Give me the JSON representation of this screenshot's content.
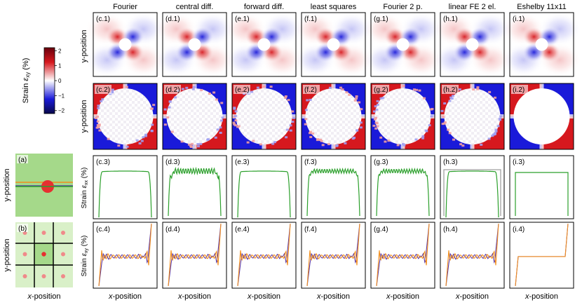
{
  "columns": [
    "Fourier",
    "central diff.",
    "forward diff.",
    "least squares",
    "Fourier 2 p.",
    "linear FE 2 el.",
    "Eshelby 11x11"
  ],
  "panels": {
    "row1": [
      "(c.1)",
      "(d.1)",
      "(e.1)",
      "(f.1)",
      "(g.1)",
      "(h.1)",
      "(i.1)"
    ],
    "row2": [
      "(c.2)",
      "(d.2)",
      "(e.2)",
      "(f.2)",
      "(g.2)",
      "(h.2)",
      "(i.2)"
    ],
    "row3": [
      "(c.3)",
      "(d.3)",
      "(e.3)",
      "(f.3)",
      "(g.3)",
      "(h.3)",
      "(i.3)"
    ],
    "row4": [
      "(c.4)",
      "(d.4)",
      "(e.4)",
      "(f.4)",
      "(g.4)",
      "(h.4)",
      "(i.4)"
    ],
    "a": "(a)",
    "b": "(b)"
  },
  "row_labels": {
    "y_position": "y-position",
    "strain_xx_prefix": "Strain ",
    "strain_xx_symbol": "ε",
    "strain_xx_sub": "xx",
    "strain_xy_sub": "xy",
    "unit": " (%)"
  },
  "x_label": "x-position",
  "colorbar": {
    "label_prefix": "Strain ",
    "symbol": "ε",
    "sub": "xy",
    "unit": " (%)",
    "ticks": [
      "2",
      "1",
      "0",
      "−1",
      "−2"
    ],
    "tick_values": [
      2,
      1,
      0,
      -1,
      -2
    ],
    "range": [
      -2.2,
      2.2
    ]
  },
  "colors": {
    "positive": "#d6181e",
    "negative": "#1a1ad9",
    "neutral": "#ffffff",
    "green_line": "#2ca02c",
    "purple_line": "#5b3aa8",
    "orange_line": "#f28e1c",
    "gray_line": "#a0a0a0",
    "unit_cell_green": "#a5d98a",
    "unit_cell_light": "#d9f0c8",
    "inclusion": "#e63030"
  },
  "chart_data": {
    "type": "heatmap-and-line-grid",
    "rows": [
      {
        "row": 1,
        "type": "heatmap",
        "quantity": "strain_xy",
        "view": "full cell"
      },
      {
        "row": 2,
        "type": "heatmap",
        "quantity": "strain_xy",
        "view": "saturated color scale"
      },
      {
        "row": 3,
        "type": "line",
        "quantity": "strain_xx",
        "series": [
          {
            "name": "profile",
            "color": "green"
          }
        ],
        "profile_shape": [
          "smooth plateau",
          "plateau with oscillations",
          "smooth plateau",
          "plateau with oscillations",
          "plateau with oscillations",
          "smooth plateau with reference",
          "flat plateau"
        ]
      },
      {
        "row": 4,
        "type": "line",
        "quantity": "strain_xy",
        "series": [
          {
            "name": "upper line",
            "color": "purple"
          },
          {
            "name": "lower line",
            "color": "orange"
          }
        ]
      }
    ]
  }
}
